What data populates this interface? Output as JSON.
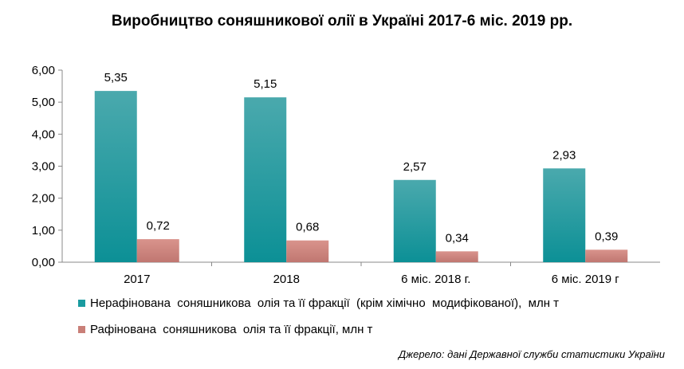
{
  "chart_data": {
    "type": "bar",
    "title": "Виробництво соняшникової олії в Україні 2017-6 міс. 2019 рр.",
    "categories": [
      "2017",
      "2018",
      "6 міс. 2018 г.",
      "6 міс. 2019 г"
    ],
    "series": [
      {
        "name": "Нерафінована  соняшникова  олія та її фракції  (крім хімічно  модифікованої),  млн т",
        "values": [
          5.35,
          5.15,
          2.57,
          2.93
        ],
        "labels": [
          "5,35",
          "5,15",
          "2,57",
          "2,93"
        ],
        "color": "#1a9ba0"
      },
      {
        "name": "Рафінована  соняшникова  олія та її фракції, млн т",
        "values": [
          0.72,
          0.68,
          0.34,
          0.39
        ],
        "labels": [
          "0,72",
          "0,68",
          "0,34",
          "0,39"
        ],
        "color": "#c97f78"
      }
    ],
    "ylim": [
      0,
      6
    ],
    "yticks": [
      0,
      1,
      2,
      3,
      4,
      5,
      6
    ],
    "ytick_labels": [
      "0,00",
      "1,00",
      "2,00",
      "3,00",
      "4,00",
      "5,00",
      "6,00"
    ],
    "grid": false,
    "legend": "bottom"
  },
  "source_note": "Джерело: дані Державної служби статистики України"
}
